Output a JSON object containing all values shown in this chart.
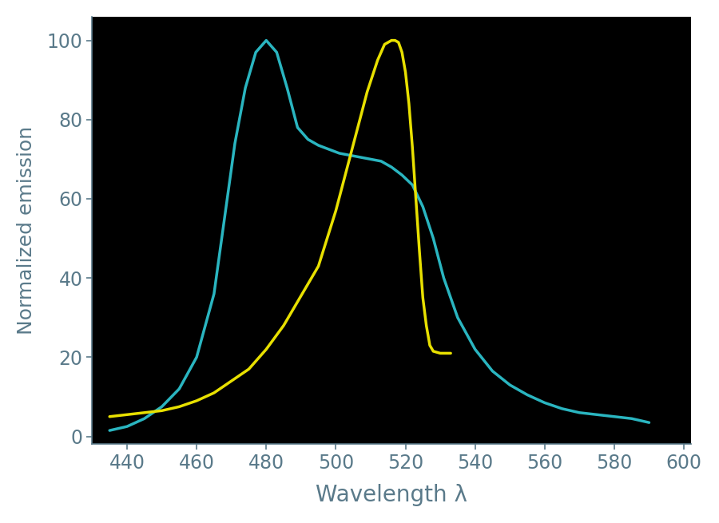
{
  "background_color": "#ffffff",
  "plot_bg_color": "#000000",
  "text_color": "#5a7a8a",
  "ecfp_color": "#2ab5c0",
  "eyfp_color": "#e8e000",
  "xlabel": "Wavelength λ",
  "ylabel": "Normalized emission",
  "xlim": [
    430,
    602
  ],
  "ylim": [
    -2,
    106
  ],
  "xticks": [
    440,
    460,
    480,
    500,
    520,
    540,
    560,
    580,
    600
  ],
  "yticks": [
    0,
    20,
    40,
    60,
    80,
    100
  ],
  "xlabel_fontsize": 20,
  "ylabel_fontsize": 18,
  "tick_fontsize": 17,
  "line_width": 2.5,
  "ecfp_x": [
    435,
    440,
    445,
    450,
    455,
    460,
    465,
    468,
    471,
    474,
    477,
    480,
    483,
    486,
    489,
    492,
    495,
    498,
    501,
    504,
    507,
    510,
    513,
    516,
    519,
    522,
    525,
    528,
    531,
    535,
    540,
    545,
    550,
    555,
    560,
    565,
    570,
    575,
    580,
    585,
    590
  ],
  "ecfp_y": [
    1.5,
    2.5,
    4.5,
    7.5,
    12.0,
    20.0,
    36.0,
    55.0,
    74.0,
    88.0,
    97.0,
    100.0,
    97.0,
    88.0,
    78.0,
    75.0,
    73.5,
    72.5,
    71.5,
    71.0,
    70.5,
    70.0,
    69.5,
    68.0,
    66.0,
    63.5,
    58.0,
    50.0,
    40.0,
    30.0,
    22.0,
    16.5,
    13.0,
    10.5,
    8.5,
    7.0,
    6.0,
    5.5,
    5.0,
    4.5,
    3.5
  ],
  "eyfp_x": [
    435,
    440,
    445,
    450,
    455,
    460,
    465,
    470,
    475,
    480,
    485,
    490,
    495,
    500,
    503,
    506,
    509,
    512,
    514,
    516,
    517,
    518,
    519,
    520,
    521,
    522,
    523,
    524,
    525,
    526,
    527,
    528,
    530,
    532,
    533
  ],
  "eyfp_y": [
    5.0,
    5.5,
    6.0,
    6.5,
    7.5,
    9.0,
    11.0,
    14.0,
    17.0,
    22.0,
    28.0,
    35.5,
    43.0,
    57.0,
    67.0,
    77.0,
    87.0,
    95.0,
    99.0,
    100.0,
    100.0,
    99.5,
    97.0,
    92.0,
    84.0,
    73.0,
    60.0,
    47.0,
    35.0,
    28.0,
    23.0,
    21.5,
    21.0,
    21.0,
    21.0
  ]
}
